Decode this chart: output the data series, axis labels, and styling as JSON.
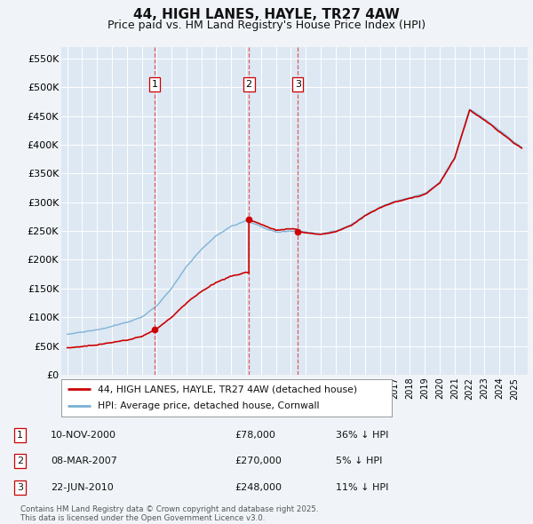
{
  "title": "44, HIGH LANES, HAYLE, TR27 4AW",
  "subtitle": "Price paid vs. HM Land Registry's House Price Index (HPI)",
  "ylim": [
    0,
    570000
  ],
  "yticks": [
    0,
    50000,
    100000,
    150000,
    200000,
    250000,
    300000,
    350000,
    400000,
    450000,
    500000,
    550000
  ],
  "ytick_labels": [
    "£0",
    "£50K",
    "£100K",
    "£150K",
    "£200K",
    "£250K",
    "£300K",
    "£350K",
    "£400K",
    "£450K",
    "£500K",
    "£550K"
  ],
  "background_color": "#f0f4f8",
  "plot_bg_color": "#dde8f3",
  "legend_label_red": "44, HIGH LANES, HAYLE, TR27 4AW (detached house)",
  "legend_label_blue": "HPI: Average price, detached house, Cornwall",
  "transactions": [
    {
      "label": "1",
      "date": 2000.87,
      "price": 78000,
      "note": "10-NOV-2000",
      "price_str": "£78,000",
      "hpi_note": "36% ↓ HPI"
    },
    {
      "label": "2",
      "date": 2007.19,
      "price": 270000,
      "note": "08-MAR-2007",
      "price_str": "£270,000",
      "hpi_note": "5% ↓ HPI"
    },
    {
      "label": "3",
      "date": 2010.47,
      "price": 248000,
      "note": "22-JUN-2010",
      "price_str": "£248,000",
      "hpi_note": "11% ↓ HPI"
    }
  ],
  "footer": "Contains HM Land Registry data © Crown copyright and database right 2025.\nThis data is licensed under the Open Government Licence v3.0.",
  "red_line_color": "#cc0000",
  "blue_line_color": "#7ab0d4",
  "vline_color": "#dd4444",
  "transaction_box_color": "#cc0000",
  "hpi_key_years": [
    1995,
    1996,
    1997,
    1998,
    1999,
    2000,
    2001,
    2002,
    2003,
    2004,
    2005,
    2006,
    2007,
    2008,
    2009,
    2010,
    2011,
    2012,
    2013,
    2014,
    2015,
    2016,
    2017,
    2018,
    2019,
    2020,
    2021,
    2022,
    2023,
    2024,
    2025.5
  ],
  "hpi_key_vals": [
    70000,
    74000,
    78000,
    84000,
    91000,
    100000,
    120000,
    150000,
    188000,
    218000,
    242000,
    258000,
    268000,
    258000,
    248000,
    250000,
    248000,
    245000,
    250000,
    260000,
    278000,
    292000,
    302000,
    308000,
    315000,
    335000,
    378000,
    462000,
    445000,
    425000,
    395000
  ]
}
